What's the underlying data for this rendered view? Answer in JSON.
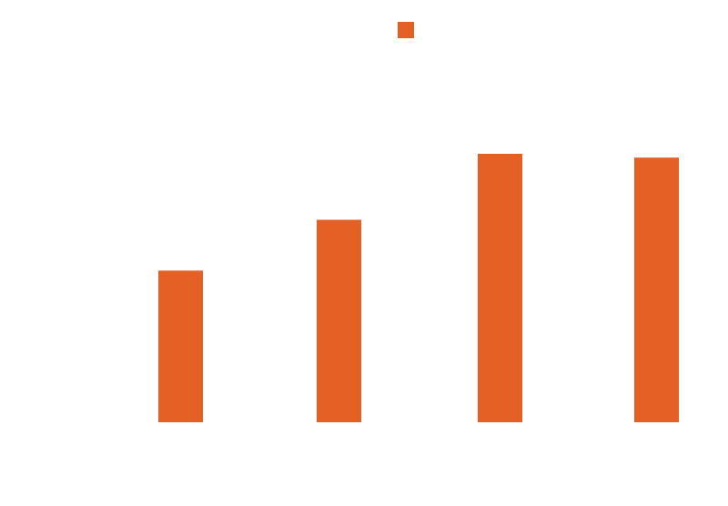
{
  "chart_data": {
    "type": "bar",
    "categories": [
      "",
      "",
      "",
      ""
    ],
    "series": [
      {
        "values": [
          1.0,
          1.335,
          1.77,
          1.745
        ],
        "color": "#E56025"
      }
    ],
    "ylim": [
      0,
      1.77
    ],
    "grid": false,
    "legend": {
      "placement": "top-center",
      "swatch_color": "#E56025"
    }
  }
}
